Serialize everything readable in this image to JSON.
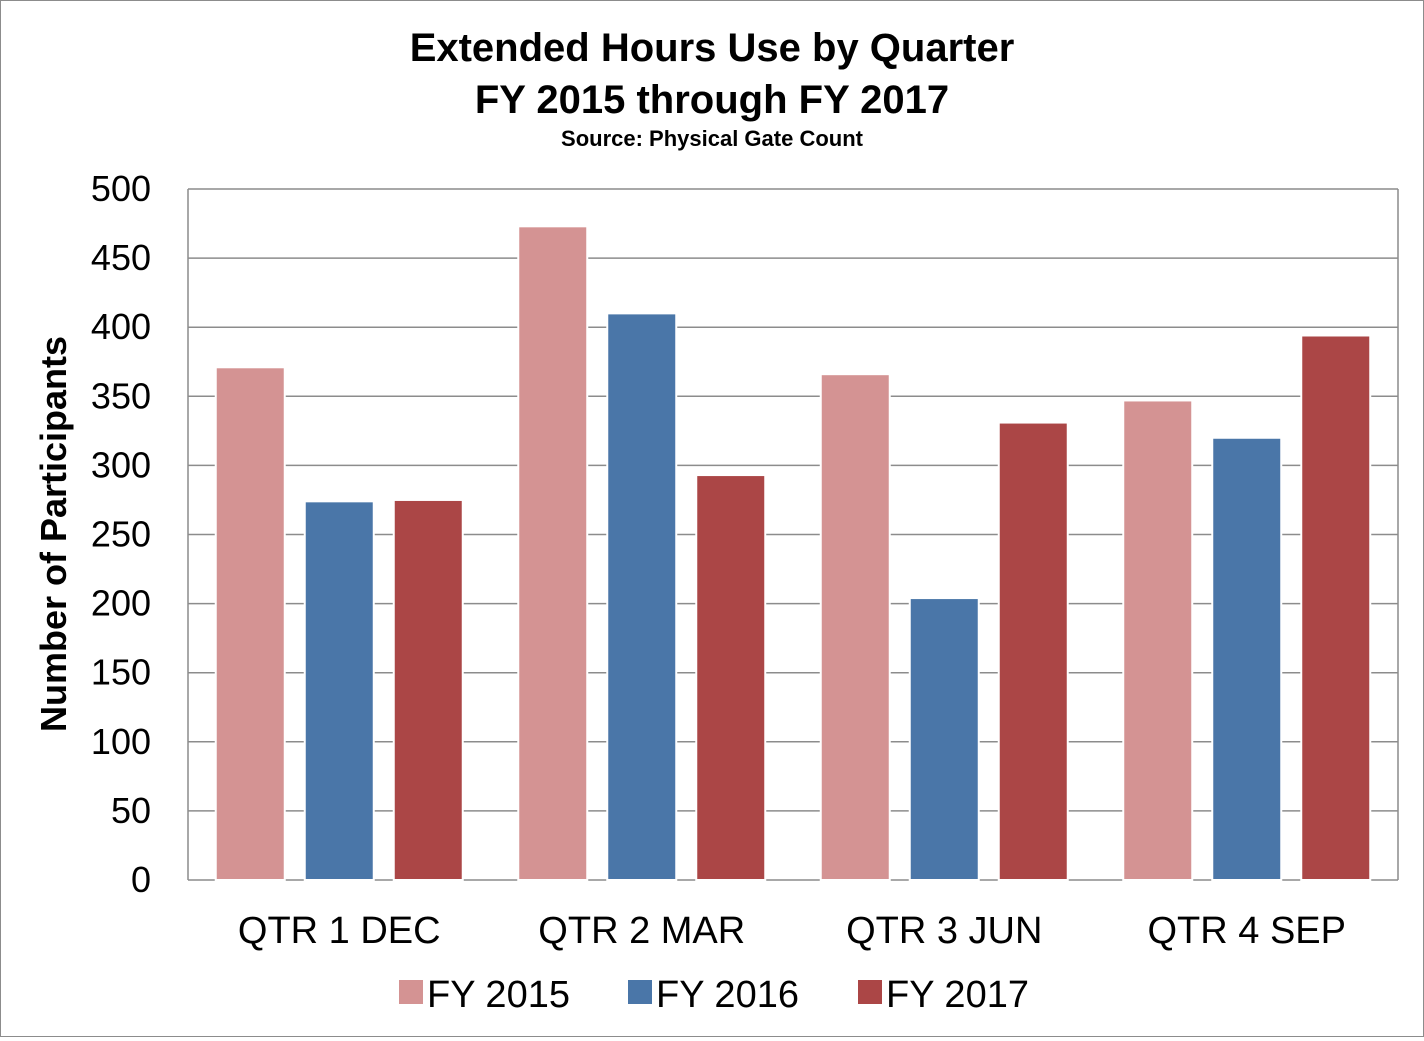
{
  "chart_data": {
    "type": "bar",
    "title": "Extended Hours Use by Quarter",
    "title_line2": "FY 2015 through FY 2017",
    "subtitle": "Source: Physical Gate Count",
    "xlabel": "",
    "ylabel": "Number of Participants",
    "ylim": [
      0,
      500
    ],
    "yticks": [
      0,
      50,
      100,
      150,
      200,
      250,
      300,
      350,
      400,
      450,
      500
    ],
    "grid": true,
    "legend_position": "bottom",
    "categories": [
      "QTR 1 DEC",
      "QTR 2 MAR",
      "QTR 3 JUN",
      "QTR 4 SEP"
    ],
    "series": [
      {
        "name": "FY 2015",
        "color": "#d49393",
        "values": [
          371,
          473,
          366,
          347
        ]
      },
      {
        "name": "FY 2016",
        "color": "#4a76a8",
        "values": [
          274,
          410,
          204,
          320
        ]
      },
      {
        "name": "FY 2017",
        "color": "#ab4646",
        "values": [
          275,
          293,
          331,
          394
        ]
      }
    ]
  }
}
